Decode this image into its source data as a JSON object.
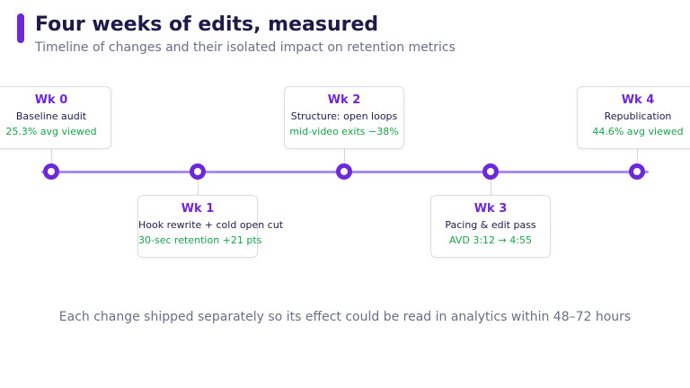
{
  "header": {
    "title": "Four weeks of edits, measured",
    "subtitle": "Timeline of changes and their isolated impact on retention metrics"
  },
  "milestones": [
    {
      "week": "Wk 0",
      "description": "Baseline audit",
      "metric": "25.3% avg viewed"
    },
    {
      "week": "Wk 1",
      "description": "Hook rewrite + cold open cut",
      "metric": "30-sec retention +21 pts"
    },
    {
      "week": "Wk 2",
      "description": "Structure: open loops",
      "metric": "mid-video exits −38%"
    },
    {
      "week": "Wk 3",
      "description": "Pacing & edit pass",
      "metric": "AVD 3:12 → 4:55"
    },
    {
      "week": "Wk 4",
      "description": "Republication",
      "metric": "44.6% avg viewed"
    }
  ],
  "footer": {
    "note": "Each change shipped separately so its effect could be read in analytics within 48–72 hours"
  },
  "colors": {
    "accent": "#6d28d9",
    "timeline": "#a78bfa",
    "metric": "#16a34a",
    "title": "#1e1b4b"
  }
}
